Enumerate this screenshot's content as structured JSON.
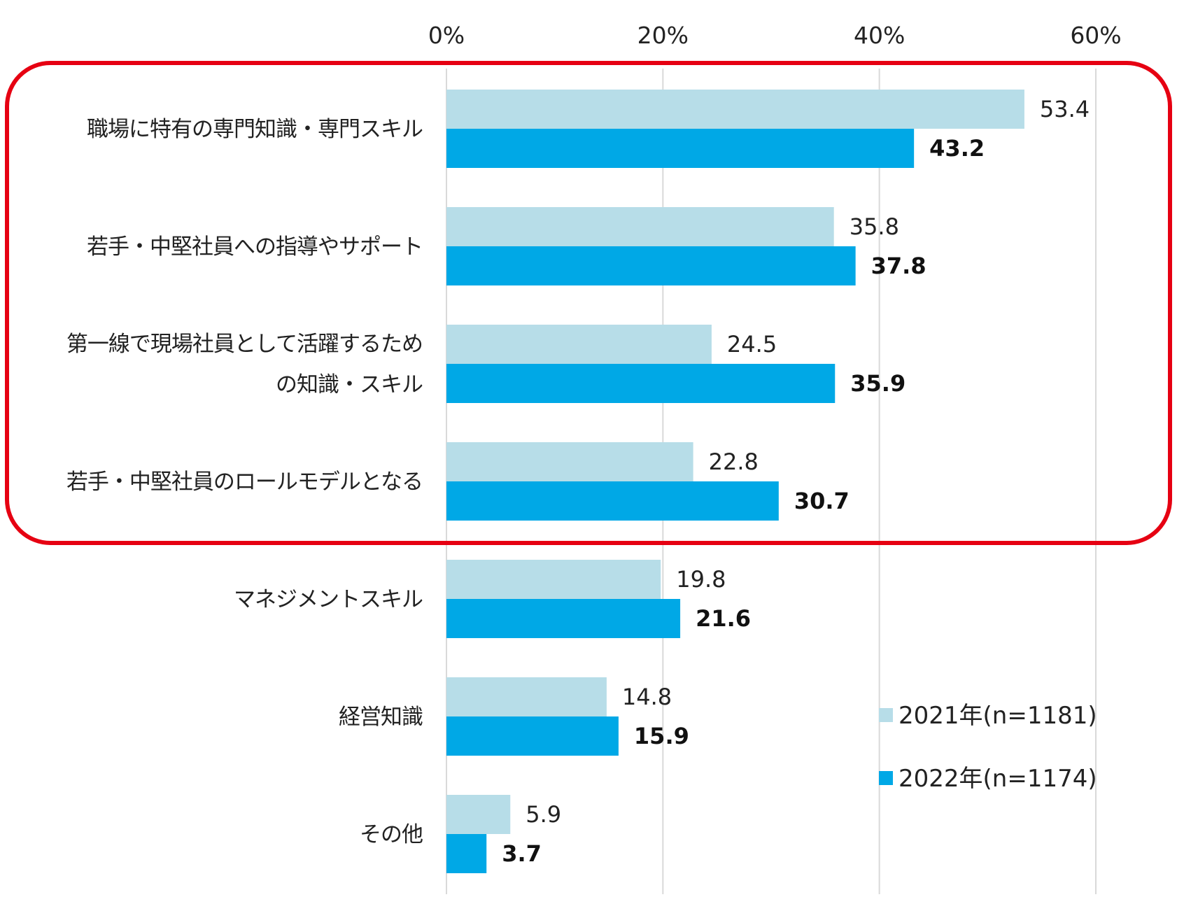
{
  "chart_data": {
    "type": "bar",
    "orientation": "horizontal",
    "categories": [
      [
        "職場に特有の専門知識・専門スキル"
      ],
      [
        "若手・中堅社員への指導やサポート"
      ],
      [
        "第一線で現場社員として活躍するため",
        "の知識・スキル"
      ],
      [
        "若手・中堅社員のロールモデルとなる"
      ],
      [
        "マネジメントスキル"
      ],
      [
        "経営知識"
      ],
      [
        "その他"
      ]
    ],
    "series": [
      {
        "name": "2021年(n=1181)",
        "color": "#b7dde8",
        "values": [
          53.4,
          35.8,
          24.5,
          22.8,
          19.8,
          14.8,
          5.9
        ],
        "bold_labels": false
      },
      {
        "name": "2022年(n=1174)",
        "color": "#00a8e6",
        "values": [
          43.2,
          37.8,
          35.9,
          30.7,
          21.6,
          15.9,
          3.7
        ],
        "bold_labels": true
      }
    ],
    "xlim": [
      0,
      60
    ],
    "xticks": [
      "0%",
      "20%",
      "40%",
      "60%"
    ],
    "grid": true,
    "legend_position": "bottom-right",
    "highlight": {
      "color": "#e60012",
      "category_indices": [
        0,
        1,
        2,
        3
      ]
    }
  }
}
